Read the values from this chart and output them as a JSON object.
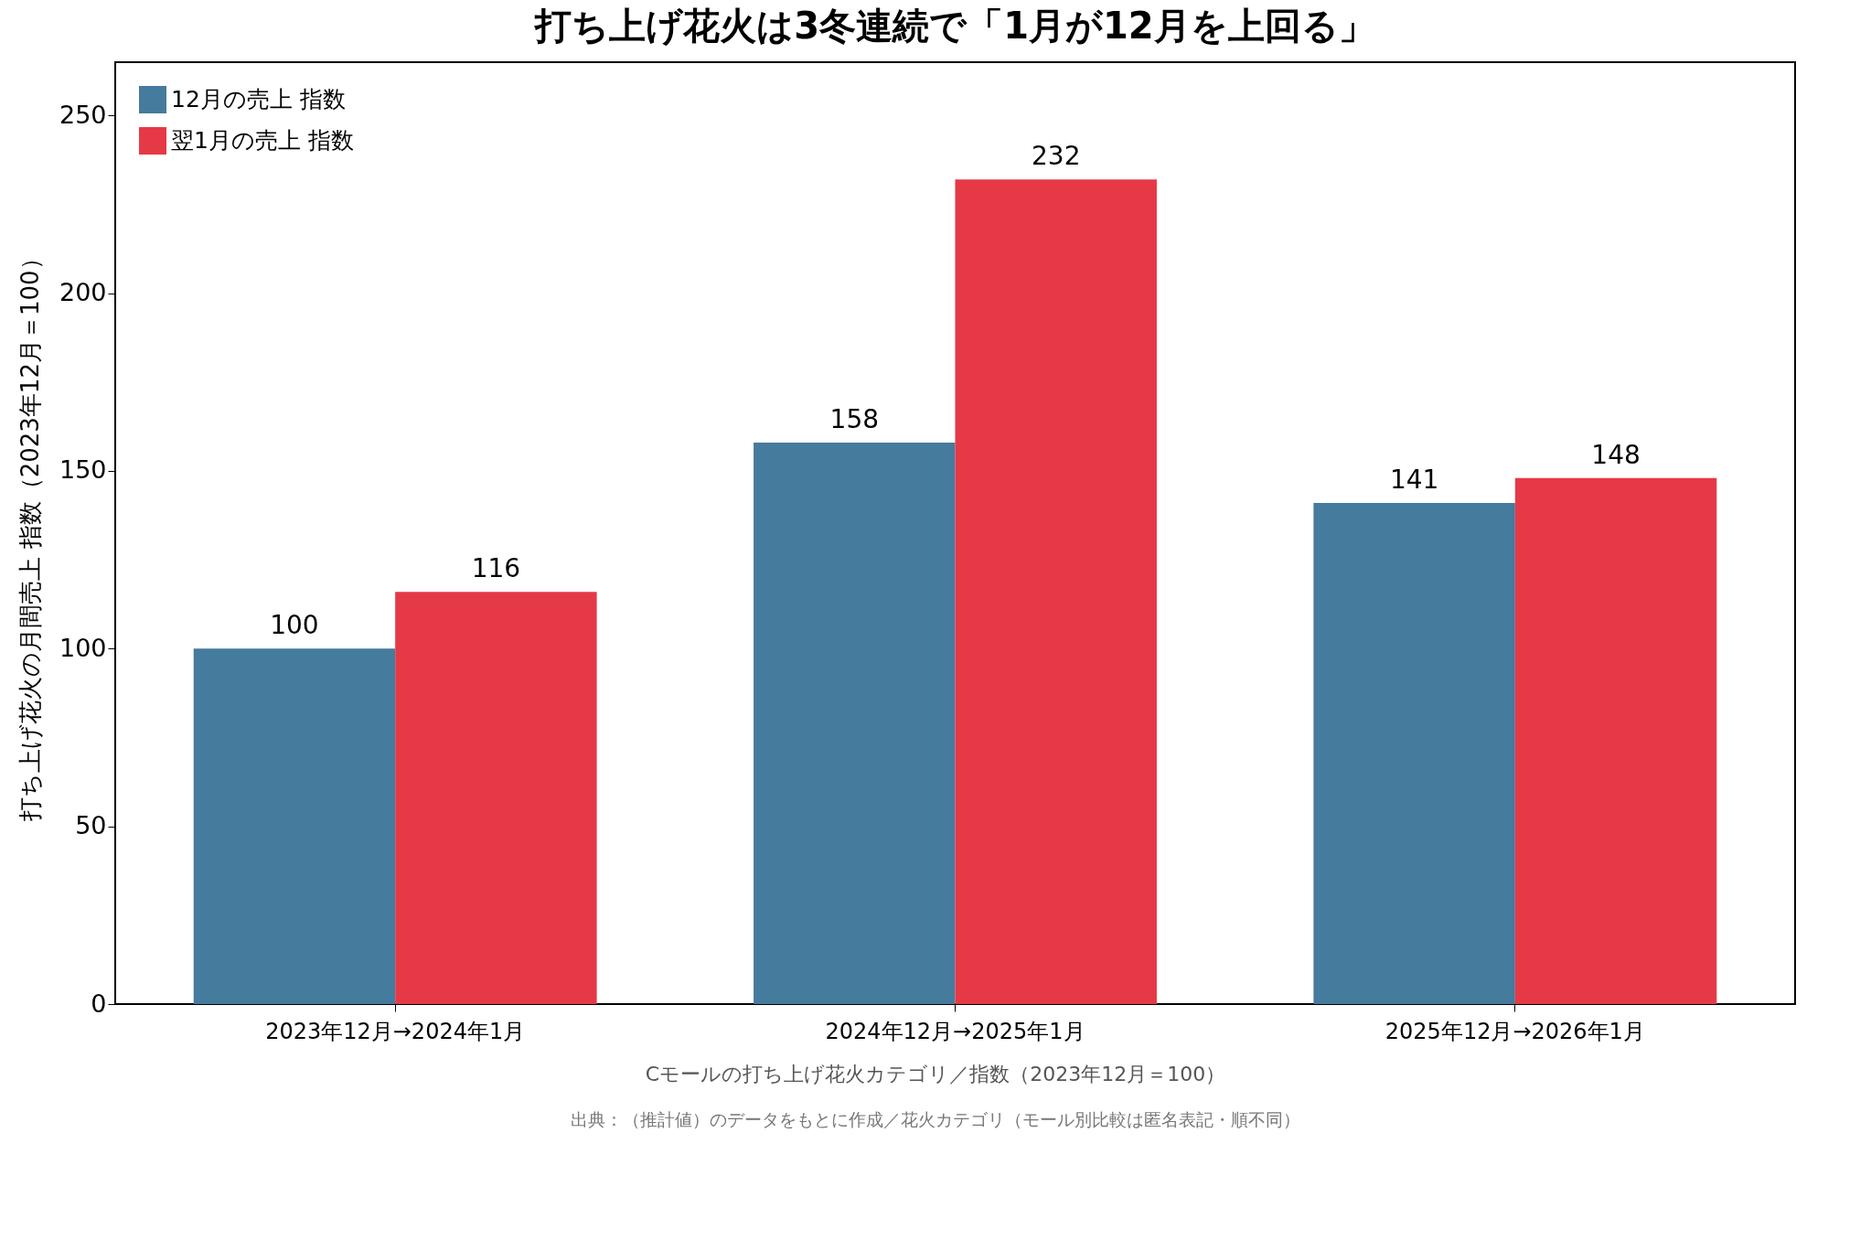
{
  "chart_data": {
    "type": "bar",
    "title": "打ち上げ花火は3冬連続で「1月が12月を上回る」",
    "ylabel": "打ち上げ花火の月間売上 指数（2023年12月＝100）",
    "categories": [
      "2023年12月→2024年1月",
      "2024年12月→2025年1月",
      "2025年12月→2026年1月"
    ],
    "series": [
      {
        "name": "12月の売上 指数",
        "color": "#457b9d",
        "values": [
          100,
          158,
          141
        ]
      },
      {
        "name": "翌1月の売上 指数",
        "color": "#e63946",
        "values": [
          116,
          232,
          148
        ]
      }
    ],
    "ylim": [
      0,
      265
    ],
    "yticks": [
      0,
      50,
      100,
      150,
      200,
      250
    ],
    "grid": false,
    "legend": "top left",
    "data_labels": true,
    "annotations": [
      "Cモールの打ち上げ花火カテゴリ／指数（2023年12月＝100）",
      "出典：（推計値）のデータをもとに作成／花火カテゴリ（モール別比較は匿名表記・順不同）"
    ]
  }
}
